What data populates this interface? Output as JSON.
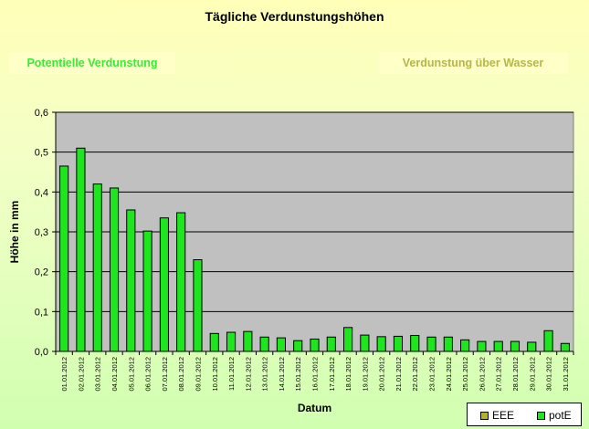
{
  "buttons": {
    "left": "Potentielle Verdunstung",
    "right": "Verdunstung über Wasser"
  },
  "chart_data": {
    "type": "bar",
    "title": "Tägliche Verdunstungshöhen",
    "xlabel": "Datum",
    "ylabel": "Höhe in mm",
    "ylim": [
      0,
      0.6
    ],
    "yticks": [
      "0,0",
      "0,1",
      "0,2",
      "0,3",
      "0,4",
      "0,5",
      "0,6"
    ],
    "grid": true,
    "legend_position": "bottom-right",
    "categories": [
      "01.01.2012",
      "02.01.2012",
      "03.01.2012",
      "04.01.2012",
      "05.01.2012",
      "06.01.2012",
      "07.01.2012",
      "08.01.2012",
      "09.01.2012",
      "10.01.2012",
      "11.01.2012",
      "12.01.2012",
      "13.01.2012",
      "14.01.2012",
      "15.01.2012",
      "16.01.2012",
      "17.01.2012",
      "18.01.2012",
      "19.01.2012",
      "20.01.2012",
      "21.01.2012",
      "22.01.2012",
      "23.01.2012",
      "24.01.2012",
      "25.01.2012",
      "26.01.2012",
      "27.01.2012",
      "28.01.2012",
      "29.01.2012",
      "30.01.2012",
      "31.01.2012"
    ],
    "series": [
      {
        "name": "EEE",
        "color": "#b4b41e",
        "values": [
          0,
          0,
          0,
          0,
          0,
          0,
          0,
          0,
          0,
          0,
          0,
          0,
          0,
          0,
          0,
          0,
          0,
          0,
          0,
          0,
          0,
          0,
          0,
          0,
          0,
          0,
          0,
          0,
          0,
          0,
          0
        ]
      },
      {
        "name": "potE",
        "color": "#1ee61e",
        "values": [
          0.465,
          0.51,
          0.42,
          0.41,
          0.355,
          0.302,
          0.335,
          0.348,
          0.23,
          0.045,
          0.048,
          0.05,
          0.036,
          0.034,
          0.027,
          0.031,
          0.036,
          0.06,
          0.041,
          0.037,
          0.038,
          0.04,
          0.036,
          0.036,
          0.029,
          0.025,
          0.025,
          0.025,
          0.023,
          0.052,
          0.02
        ]
      }
    ]
  }
}
